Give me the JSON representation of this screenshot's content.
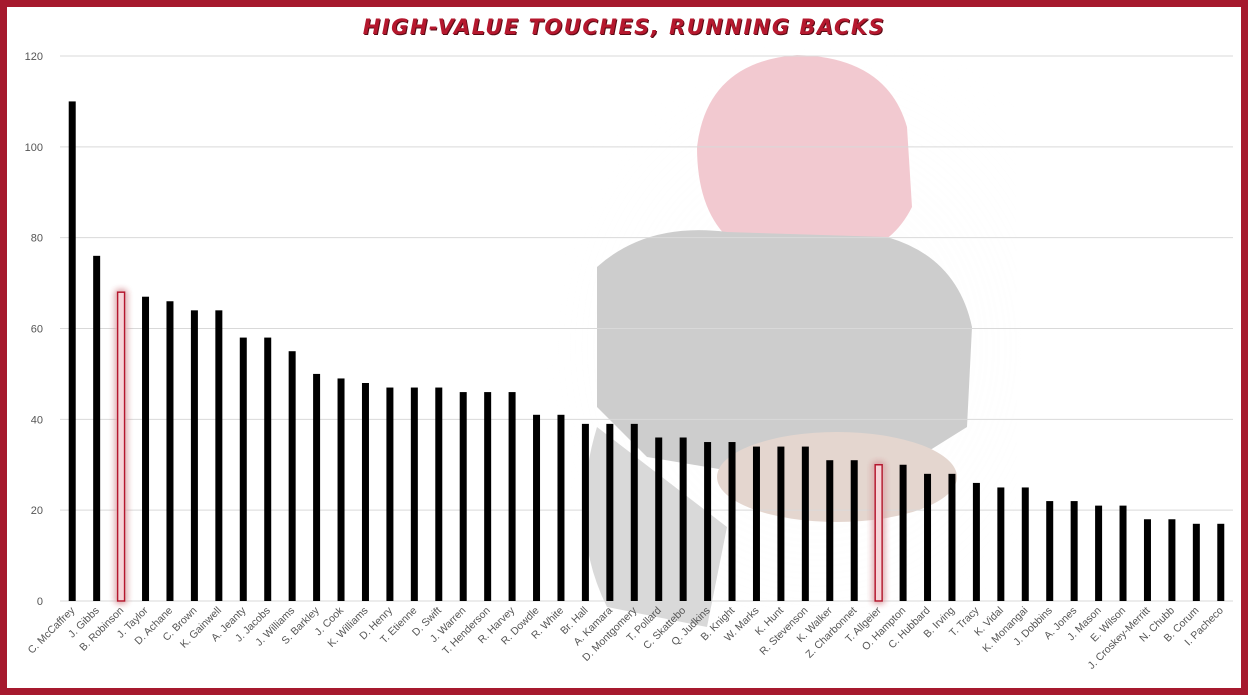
{
  "colors": {
    "frame": "#a6192e",
    "title": "#b5182e",
    "bar": "#000000",
    "highlight_bar": "#f6d4d8",
    "highlight_glow": "#b5182e",
    "grid": "#d9d9d9"
  },
  "chart_data": {
    "type": "bar",
    "title": "HIGH-VALUE TOUCHES, RUNNING BACKS",
    "xlabel": "",
    "ylabel": "",
    "ylim": [
      0,
      120
    ],
    "yticks": [
      "0",
      "20",
      "40",
      "60",
      "80",
      "100",
      "120"
    ],
    "grid": true,
    "legend": "none",
    "categories": [
      "C. McCaffrey",
      "J. Gibbs",
      "B. Robinson",
      "J. Taylor",
      "D. Achane",
      "C. Brown",
      "K. Gainwell",
      "A. Jeanty",
      "J. Jacobs",
      "J. Williams",
      "S. Barkley",
      "J. Cook",
      "K. Williams",
      "D. Henry",
      "T. Etienne",
      "D. Swift",
      "J. Warren",
      "T. Henderson",
      "R. Harvey",
      "R. Dowdle",
      "R. White",
      "Br. Hall",
      "A. Kamara",
      "D. Montgomery",
      "T. Pollard",
      "C. Skattebo",
      "Q. Judkins",
      "B. Knight",
      "W. Marks",
      "K. Hunt",
      "R. Stevenson",
      "K. Walker",
      "Z. Charbonnet",
      "T. Allgeier",
      "O. Hampton",
      "C. Hubbard",
      "B. Irving",
      "T. Tracy",
      "K. Vidal",
      "K. Monangai",
      "J. Dobbins",
      "A. Jones",
      "J. Mason",
      "E. Wilson",
      "J. Croskey-Merritt",
      "N. Chubb",
      "B. Corum",
      "I. Pacheco"
    ],
    "values": [
      110,
      76,
      68,
      67,
      66,
      64,
      64,
      58,
      58,
      55,
      50,
      49,
      48,
      47,
      47,
      47,
      46,
      46,
      46,
      41,
      41,
      39,
      39,
      39,
      36,
      36,
      35,
      35,
      34,
      34,
      34,
      31,
      31,
      30,
      30,
      28,
      28,
      26,
      25,
      25,
      22,
      22,
      21,
      21,
      18,
      18,
      17,
      17
    ],
    "highlighted": [
      "B. Robinson",
      "T. Allgeier"
    ]
  }
}
